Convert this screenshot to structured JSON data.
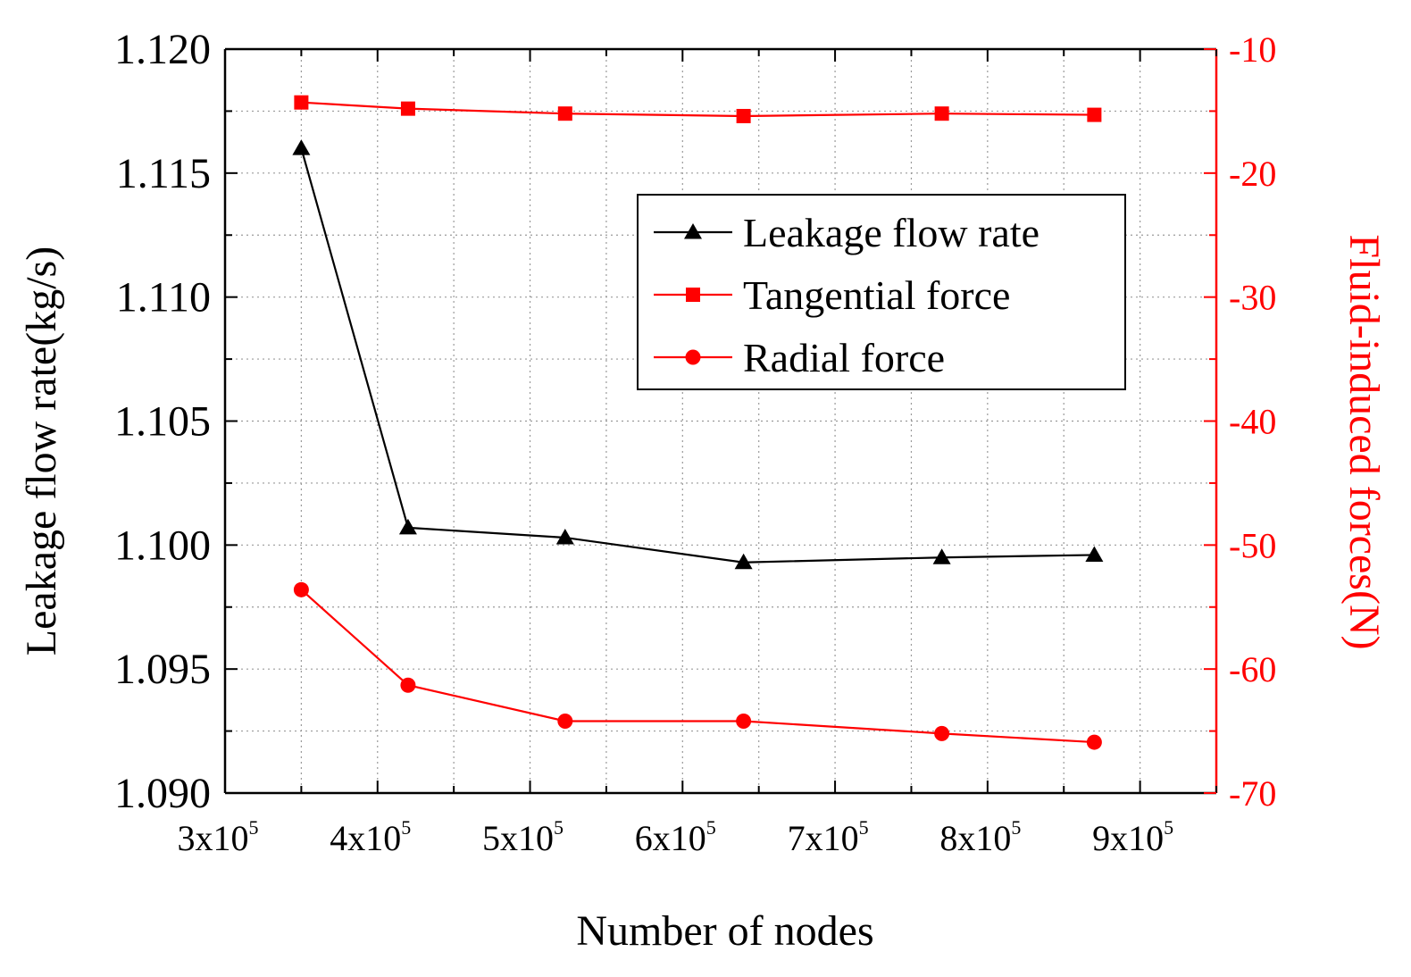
{
  "chart_data": {
    "type": "line",
    "xlabel": "Number of nodes",
    "ylabel_left": "Leakage flow rate(kg/s)",
    "ylabel_right": "Fluid-induced forces(N)",
    "xlim": [
      300000,
      950000
    ],
    "ylim_left": [
      1.09,
      1.12
    ],
    "ylim_right": [
      -70,
      -10
    ],
    "x_ticks": [
      {
        "value": 300000,
        "mant": "3x10",
        "exp": "5"
      },
      {
        "value": 400000,
        "mant": "4x10",
        "exp": "5"
      },
      {
        "value": 500000,
        "mant": "5x10",
        "exp": "5"
      },
      {
        "value": 600000,
        "mant": "6x10",
        "exp": "5"
      },
      {
        "value": 700000,
        "mant": "7x10",
        "exp": "5"
      },
      {
        "value": 800000,
        "mant": "8x10",
        "exp": "5"
      },
      {
        "value": 900000,
        "mant": "9x10",
        "exp": "5"
      }
    ],
    "y_left_ticks": [
      {
        "value": 1.09,
        "label": "1.090"
      },
      {
        "value": 1.095,
        "label": "1.095"
      },
      {
        "value": 1.1,
        "label": "1.100"
      },
      {
        "value": 1.105,
        "label": "1.105"
      },
      {
        "value": 1.11,
        "label": "1.110"
      },
      {
        "value": 1.115,
        "label": "1.115"
      },
      {
        "value": 1.12,
        "label": "1.120"
      }
    ],
    "y_right_ticks": [
      {
        "value": -70,
        "label": "-70"
      },
      {
        "value": -60,
        "label": "-60"
      },
      {
        "value": -50,
        "label": "-50"
      },
      {
        "value": -40,
        "label": "-40"
      },
      {
        "value": -30,
        "label": "-30"
      },
      {
        "value": -20,
        "label": "-20"
      },
      {
        "value": -10,
        "label": "-10"
      }
    ],
    "grid": true,
    "legend_position": "upper-right",
    "series": [
      {
        "name": "Leakage flow rate",
        "axis": "left",
        "color": "#000000",
        "marker": "triangle",
        "x": [
          350000,
          420000,
          523000,
          640000,
          770000,
          870000
        ],
        "values": [
          1.116,
          1.1007,
          1.1003,
          1.0993,
          1.0995,
          1.0996
        ]
      },
      {
        "name": "Tangential force",
        "axis": "right",
        "color": "#ff0000",
        "marker": "square",
        "x": [
          350000,
          420000,
          523000,
          640000,
          770000,
          870000
        ],
        "values": [
          -14.3,
          -14.8,
          -15.2,
          -15.4,
          -15.2,
          -15.3
        ]
      },
      {
        "name": "Radial force",
        "axis": "right",
        "color": "#ff0000",
        "marker": "circle",
        "x": [
          350000,
          420000,
          523000,
          640000,
          770000,
          870000
        ],
        "values": [
          -53.6,
          -61.3,
          -64.2,
          -64.2,
          -65.2,
          -65.9
        ]
      }
    ]
  }
}
